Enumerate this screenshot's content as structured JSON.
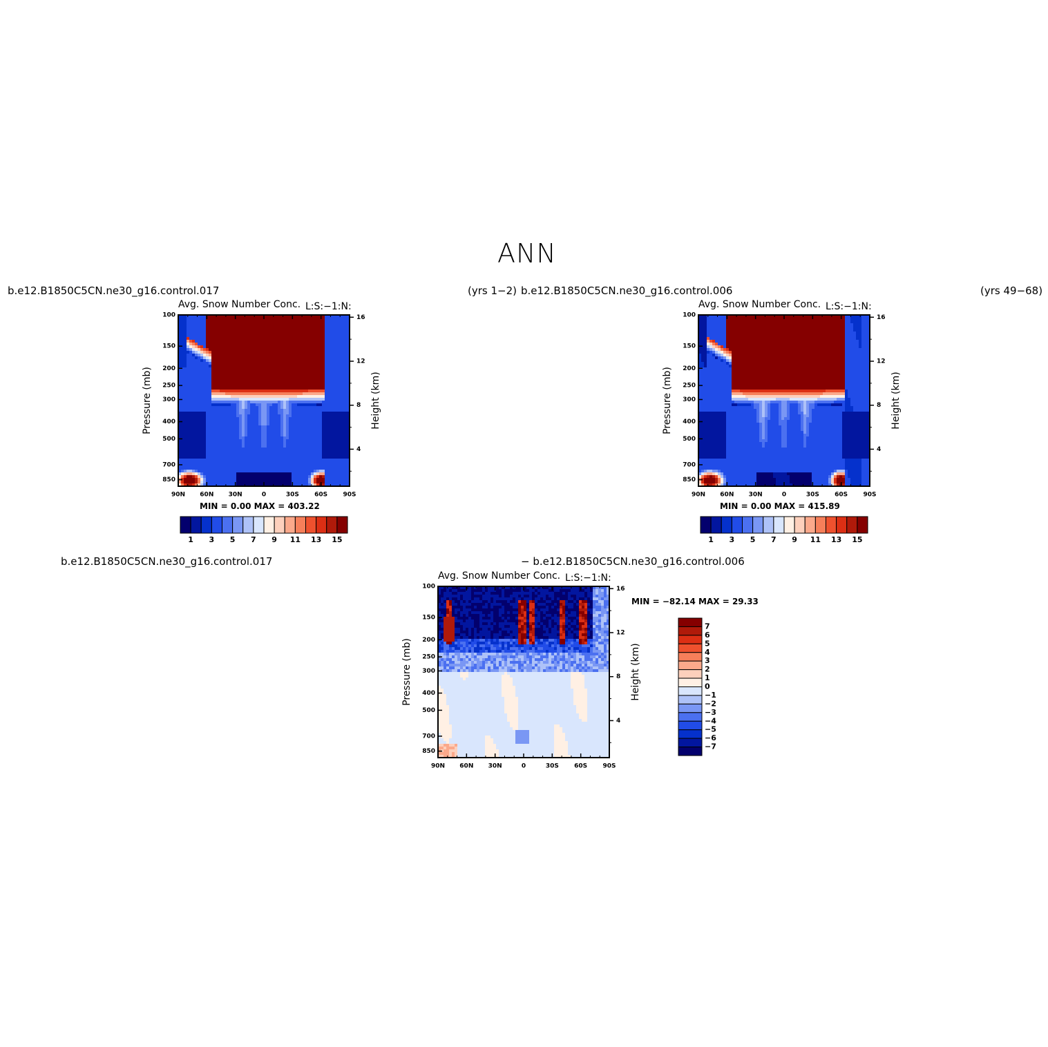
{
  "page": {
    "title": "ANN"
  },
  "panels": [
    {
      "id": "case1",
      "case_label": "b.e12.B1850C5CN.ne30_g16.control.017",
      "years_label": "(yrs  1−2)",
      "var_label": "Avg.  Snow  Number  Conc.",
      "units_label": "L:S:−1:N:",
      "stats": "MIN =     0.00   MAX =  403.22"
    },
    {
      "id": "case2",
      "case_label": "b.e12.B1850C5CN.ne30_g16.control.006",
      "years_label": "(yrs  49−68)",
      "var_label": "Avg.  Snow  Number  Conc.",
      "units_label": "L:S:−1:N:",
      "stats": "MIN =     0.00   MAX =  415.89"
    },
    {
      "id": "diff",
      "case_label": "b.e12.B1850C5CN.ne30_g16.control.017",
      "minus_label": "−  b.e12.B1850C5CN.ne30_g16.control.006",
      "var_label": "Avg.  Snow  Number  Conc.",
      "units_label": "L:S:−1:N:",
      "stats": "MIN = −82.14   MAX =   29.33"
    }
  ],
  "chart_data": [
    {
      "type": "heatmap",
      "title": "Avg.  Snow  Number  Conc.",
      "xlabel": "",
      "ylabel": "Pressure  (mb)",
      "y2label": "Height  (km)",
      "x_ticks": [
        "90N",
        "60N",
        "30N",
        "0",
        "30S",
        "60S",
        "90S"
      ],
      "x_range": [
        90,
        -90
      ],
      "y_ticks": [
        100,
        150,
        200,
        250,
        300,
        400,
        500,
        700,
        850
      ],
      "y_range": [
        100,
        925
      ],
      "y_scale": "log",
      "y2_ticks": [
        16,
        12,
        8,
        4
      ],
      "colorbar_ticks": [
        "1",
        "3",
        "5",
        "7",
        "9",
        "11",
        "13",
        "15"
      ],
      "colorbar_orientation": "horizontal",
      "min": 0.0,
      "max": 403.22
    },
    {
      "type": "heatmap",
      "title": "Avg.  Snow  Number  Conc.",
      "xlabel": "",
      "ylabel": "Pressure  (mb)",
      "y2label": "Height  (km)",
      "x_ticks": [
        "90N",
        "60N",
        "30N",
        "0",
        "30S",
        "60S",
        "90S"
      ],
      "x_range": [
        90,
        -90
      ],
      "y_ticks": [
        100,
        150,
        200,
        250,
        300,
        400,
        500,
        700,
        850
      ],
      "y_range": [
        100,
        925
      ],
      "y_scale": "log",
      "y2_ticks": [
        16,
        12,
        8,
        4
      ],
      "colorbar_ticks": [
        "1",
        "3",
        "5",
        "7",
        "9",
        "11",
        "13",
        "15"
      ],
      "colorbar_orientation": "horizontal",
      "min": 0.0,
      "max": 415.89
    },
    {
      "type": "heatmap",
      "title": "Avg.  Snow  Number  Conc.",
      "xlabel": "",
      "ylabel": "Pressure  (mb)",
      "y2label": "Height  (km)",
      "x_ticks": [
        "90N",
        "60N",
        "30N",
        "0",
        "30S",
        "60S",
        "90S"
      ],
      "x_range": [
        90,
        -90
      ],
      "y_ticks": [
        100,
        150,
        200,
        250,
        300,
        400,
        500,
        700,
        850
      ],
      "y_range": [
        100,
        925
      ],
      "y_scale": "log",
      "y2_ticks": [
        16,
        12,
        8,
        4
      ],
      "colorbar_ticks": [
        "7",
        "6",
        "5",
        "4",
        "3",
        "2",
        "1",
        "0",
        "−1",
        "−2",
        "−3",
        "−4",
        "−5",
        "−6",
        "−7"
      ],
      "colorbar_orientation": "vertical",
      "min": -82.14,
      "max": 29.33
    }
  ],
  "colors": {
    "scale16": [
      "#03006d",
      "#02169f",
      "#0531cc",
      "#214ce8",
      "#4b70f0",
      "#7a97f4",
      "#aec2f8",
      "#d9e6fd",
      "#fff0e4",
      "#fdd0bc",
      "#fba98b",
      "#f67f5a",
      "#ee512e",
      "#dc2f14",
      "#b01a0a",
      "#850000"
    ],
    "diff16": [
      "#850000",
      "#b01a0a",
      "#dc2f14",
      "#ee512e",
      "#f67f5a",
      "#fba98b",
      "#fdd0bc",
      "#fff0e4",
      "#d9e6fd",
      "#aec2f8",
      "#7a97f4",
      "#4b70f0",
      "#214ce8",
      "#0531cc",
      "#02169f",
      "#03006d"
    ]
  }
}
